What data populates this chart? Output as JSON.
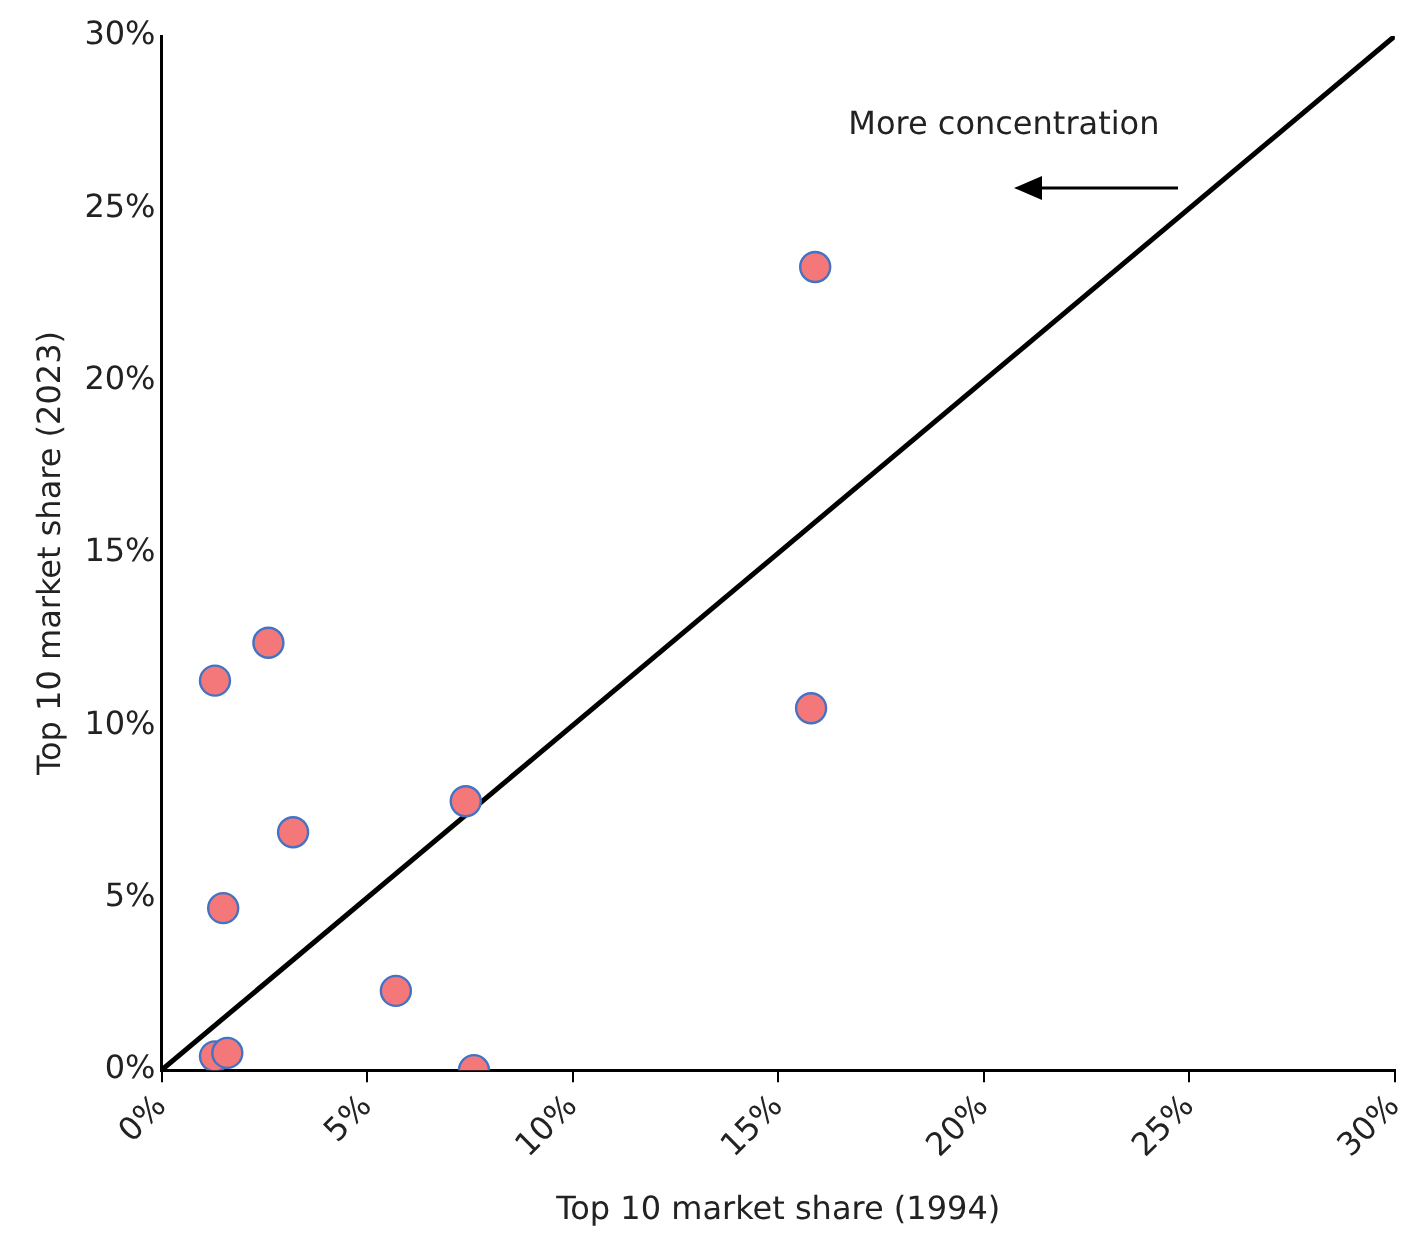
{
  "chart_data": {
    "type": "scatter",
    "xlabel": "Top 10 market share (1994)",
    "ylabel": "Top 10 market share (2023)",
    "xlim": [
      0,
      30
    ],
    "ylim": [
      0,
      30
    ],
    "xticks": [
      {
        "value": 0,
        "label": "0%"
      },
      {
        "value": 5,
        "label": "5%"
      },
      {
        "value": 10,
        "label": "10%"
      },
      {
        "value": 15,
        "label": "15%"
      },
      {
        "value": 20,
        "label": "20%"
      },
      {
        "value": 25,
        "label": "25%"
      },
      {
        "value": 30,
        "label": "30%"
      }
    ],
    "yticks": [
      {
        "value": 0,
        "label": "0%"
      },
      {
        "value": 5,
        "label": "5%"
      },
      {
        "value": 10,
        "label": "10%"
      },
      {
        "value": 15,
        "label": "15%"
      },
      {
        "value": 20,
        "label": "20%"
      },
      {
        "value": 25,
        "label": "25%"
      },
      {
        "value": 30,
        "label": "30%"
      }
    ],
    "grid": false,
    "legend": false,
    "series": [
      {
        "marker": "circle",
        "color": "#f4777a",
        "x": [
          15.9,
          2.6,
          1.3,
          15.8,
          7.4,
          3.2,
          1.5,
          5.7,
          7.6,
          1.3,
          1.6
        ],
        "values": [
          23.3,
          12.4,
          11.3,
          10.5,
          7.8,
          6.9,
          4.7,
          2.3,
          0,
          0.4,
          0.5
        ]
      },
      {
        "type": "line",
        "marker": "none",
        "color": "#000000",
        "x": [
          0,
          30
        ],
        "values": [
          0,
          30
        ]
      }
    ],
    "annotations": [
      "More concentration"
    ]
  }
}
